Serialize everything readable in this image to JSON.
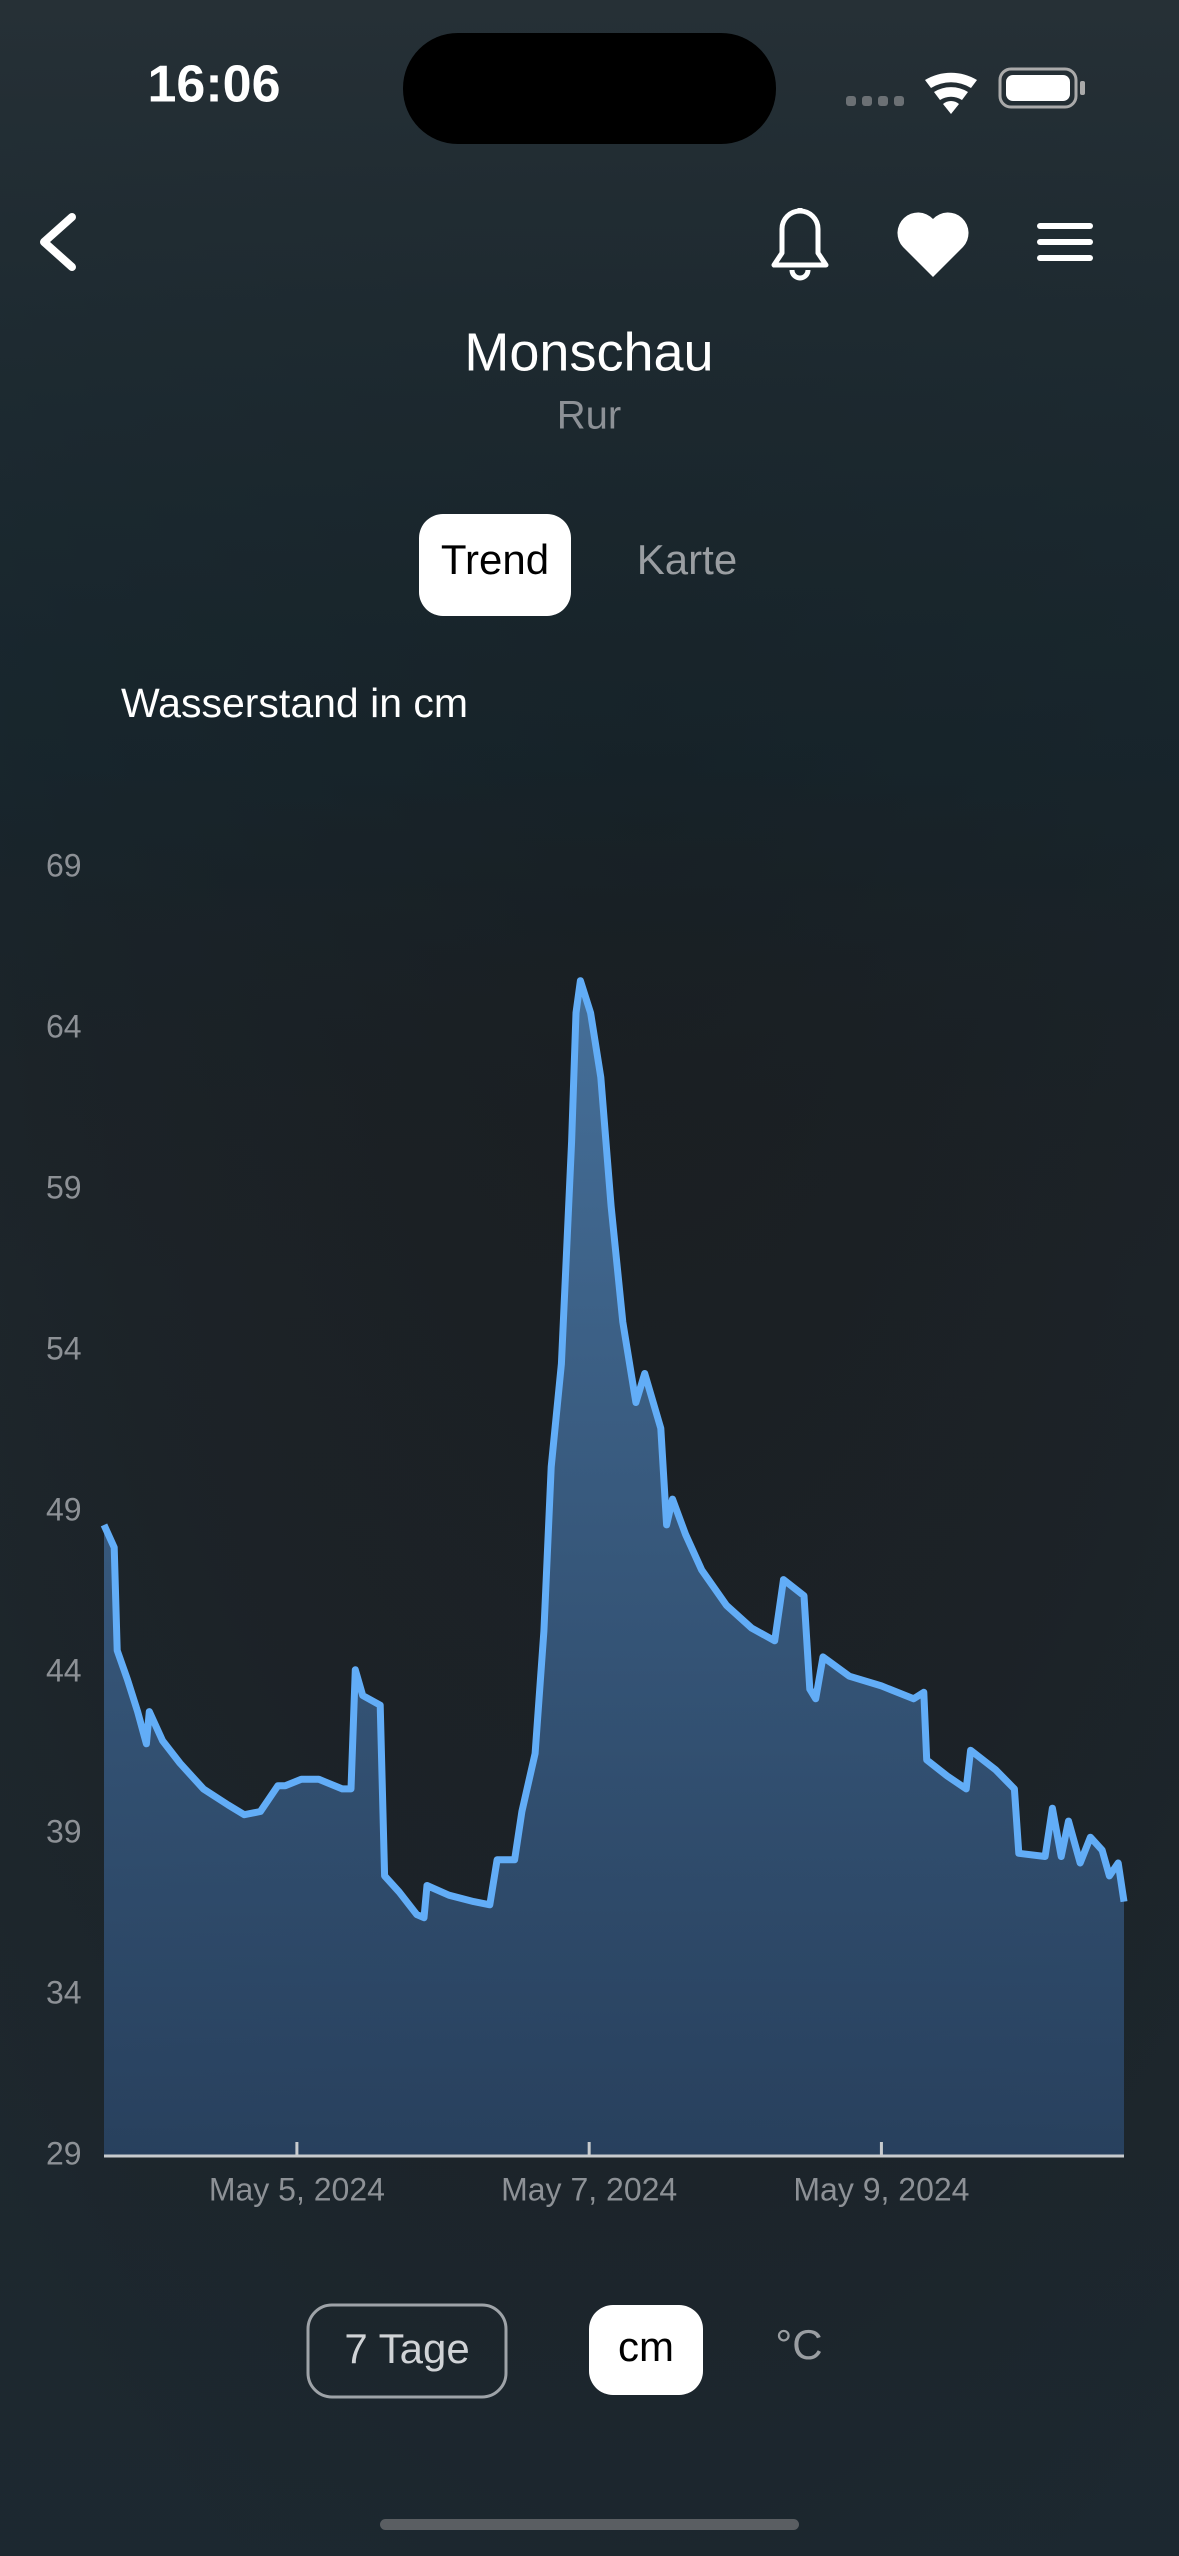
{
  "status_bar": {
    "time": "16:06"
  },
  "header": {
    "title": "Monschau",
    "subtitle": "Rur"
  },
  "tabs": [
    "Trend",
    "Karte"
  ],
  "chart_data": {
    "type": "line",
    "title": "Wasserstand in cm",
    "x": [
      3.68,
      3.75,
      3.77,
      3.84,
      3.91,
      3.97,
      3.99,
      4.08,
      4.2,
      4.36,
      4.53,
      4.64,
      4.75,
      4.87,
      4.92,
      5.03,
      5.15,
      5.31,
      5.37,
      5.4,
      5.45,
      5.57,
      5.6,
      5.7,
      5.82,
      5.87,
      5.89,
      6.04,
      6.21,
      6.32,
      6.37,
      6.49,
      6.54,
      6.63,
      6.69,
      6.74,
      6.81,
      6.88,
      6.91,
      6.94,
      7.01,
      7.08,
      7.15,
      7.23,
      7.32,
      7.38,
      7.49,
      7.53,
      7.57,
      7.66,
      7.77,
      7.94,
      8.11,
      8.27,
      8.33,
      8.47,
      8.51,
      8.55,
      8.6,
      8.78,
      9.0,
      9.22,
      9.29,
      9.31,
      9.45,
      9.58,
      9.61,
      9.78,
      9.91,
      9.94,
      10.12,
      10.17,
      10.23,
      10.28,
      10.36,
      10.43,
      10.51,
      10.56,
      10.62,
      10.66
    ],
    "values": [
      48.6,
      47.9,
      44.7,
      43.8,
      42.8,
      41.8,
      42.8,
      41.9,
      41.2,
      40.4,
      39.9,
      39.6,
      39.7,
      40.5,
      40.5,
      40.7,
      40.7,
      40.4,
      40.4,
      44.1,
      43.3,
      43.0,
      37.7,
      37.2,
      36.5,
      36.4,
      37.4,
      37.1,
      36.9,
      36.8,
      38.2,
      38.2,
      39.7,
      41.5,
      45.3,
      50.4,
      53.6,
      60.5,
      64.5,
      65.5,
      64.5,
      62.5,
      58.5,
      54.9,
      52.4,
      53.3,
      51.6,
      48.6,
      49.4,
      48.3,
      47.2,
      46.1,
      45.4,
      45.0,
      46.9,
      46.4,
      43.5,
      43.2,
      44.5,
      43.9,
      43.6,
      43.2,
      43.4,
      41.3,
      40.8,
      40.4,
      41.6,
      41.0,
      40.4,
      38.4,
      38.3,
      39.8,
      38.3,
      39.4,
      38.1,
      38.9,
      38.5,
      37.7,
      38.1,
      36.9
    ],
    "color": "#62adf7",
    "xlim": [
      3.68,
      10.66
    ],
    "xticks": [
      {
        "value": 5,
        "label": "May 5, 2024"
      },
      {
        "value": 7,
        "label": "May 7, 2024"
      },
      {
        "value": 9,
        "label": "May 9, 2024"
      }
    ],
    "ylim": [
      29,
      69
    ],
    "yticks": [
      29,
      34,
      39,
      44,
      49,
      54,
      59,
      64,
      69
    ],
    "grid": false
  },
  "controls": [
    "7 Tage",
    "cm",
    "°C"
  ]
}
